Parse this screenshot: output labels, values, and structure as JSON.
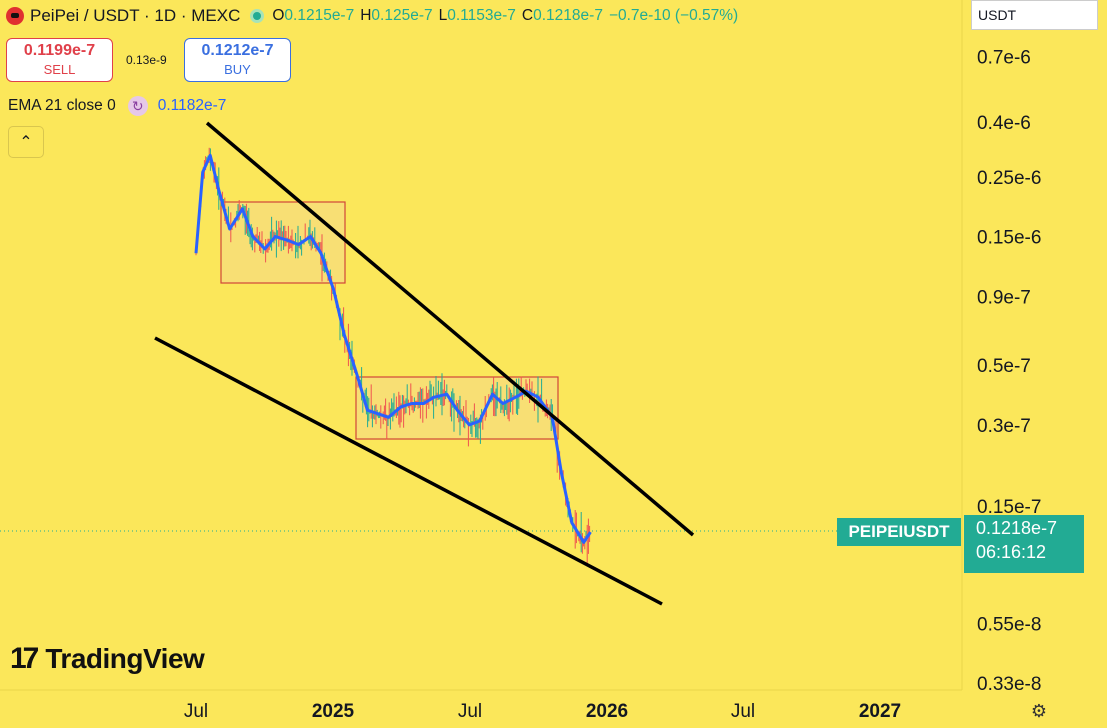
{
  "header": {
    "title": "PeiPei / USDT · 1D · MEXC",
    "ohlc": [
      {
        "key": "O",
        "value": "0.1215e-7"
      },
      {
        "key": "H",
        "value": "0.125e-7"
      },
      {
        "key": "L",
        "value": "0.1153e-7"
      },
      {
        "key": "C",
        "value": "0.1218e-7"
      }
    ],
    "change": "−0.7e-10 (−0.57%)"
  },
  "trade": {
    "sell_price": "0.1199e-7",
    "sell_label": "SELL",
    "spread": "0.13e-9",
    "buy_price": "0.1212e-7",
    "buy_label": "BUY"
  },
  "indicator": {
    "label": "EMA 21 close 0",
    "value": "0.1182e-7"
  },
  "currency_selector": "USDT",
  "symbol_badge": "PEIPEIUSDT",
  "last_price": "0.1218e-7",
  "countdown": "06:16:12",
  "branding": "TradingView",
  "colors": {
    "background": "#fbe75a",
    "up": "#22ab94",
    "ema": "#2962ff",
    "box_border": "#d0463a"
  },
  "chart_data": {
    "type": "line",
    "title": "PeiPei / USDT · 1D · MEXC",
    "scale": "log",
    "x_ticks": [
      "Jul",
      "2025",
      "Jul",
      "2026",
      "Jul",
      "2027"
    ],
    "y_ticks": [
      "0.7e-6",
      "0.4e-6",
      "0.25e-6",
      "0.15e-6",
      "0.9e-7",
      "0.5e-7",
      "0.3e-7",
      "0.15e-7",
      "0.55e-8",
      "0.33e-8"
    ],
    "y_tick_values": [
      7e-07,
      4e-07,
      2.5e-07,
      1.5e-07,
      9e-08,
      5e-08,
      3e-08,
      1.5e-08,
      5.5e-09,
      3.3e-09
    ],
    "series": [
      {
        "name": "EMA 21 close 0",
        "x": [
          "2024-07-01",
          "2024-07-10",
          "2024-07-20",
          "2024-08-01",
          "2024-08-15",
          "2024-09-01",
          "2024-09-15",
          "2024-10-01",
          "2024-10-15",
          "2024-11-01",
          "2024-11-15",
          "2024-12-01",
          "2024-12-15",
          "2025-01-01",
          "2025-01-15",
          "2025-02-01",
          "2025-02-15",
          "2025-03-01",
          "2025-03-15",
          "2025-04-01",
          "2025-04-15",
          "2025-05-01",
          "2025-05-15",
          "2025-06-01",
          "2025-06-15",
          "2025-07-01",
          "2025-07-15",
          "2025-08-01",
          "2025-08-15",
          "2025-09-01",
          "2025-09-15",
          "2025-10-01",
          "2025-10-10",
          "2025-10-20",
          "2025-11-01",
          "2025-11-15",
          "2025-12-01",
          "2025-12-10"
        ],
        "values": [
          1.3e-07,
          2.6e-07,
          3e-07,
          2.2e-07,
          1.6e-07,
          1.9e-07,
          1.5e-07,
          1.35e-07,
          1.5e-07,
          1.45e-07,
          1.4e-07,
          1.5e-07,
          1.3e-07,
          9.5e-08,
          6.5e-08,
          4.6e-08,
          3.4e-08,
          3.3e-08,
          3.2e-08,
          3.5e-08,
          3.6e-08,
          3.6e-08,
          3.8e-08,
          3.9e-08,
          3.4e-08,
          3e-08,
          3.1e-08,
          3.9e-08,
          3.6e-08,
          3.8e-08,
          4e-08,
          3.8e-08,
          3.5e-08,
          3.2e-08,
          2e-08,
          1.3e-08,
          1.1e-08,
          1.2e-08
        ]
      }
    ],
    "price_range_min": [
      1e-08,
      1e-08,
      1e-08
    ],
    "annotations": [
      "Descending wedge trendlines",
      "Two consolidation boxes"
    ]
  }
}
